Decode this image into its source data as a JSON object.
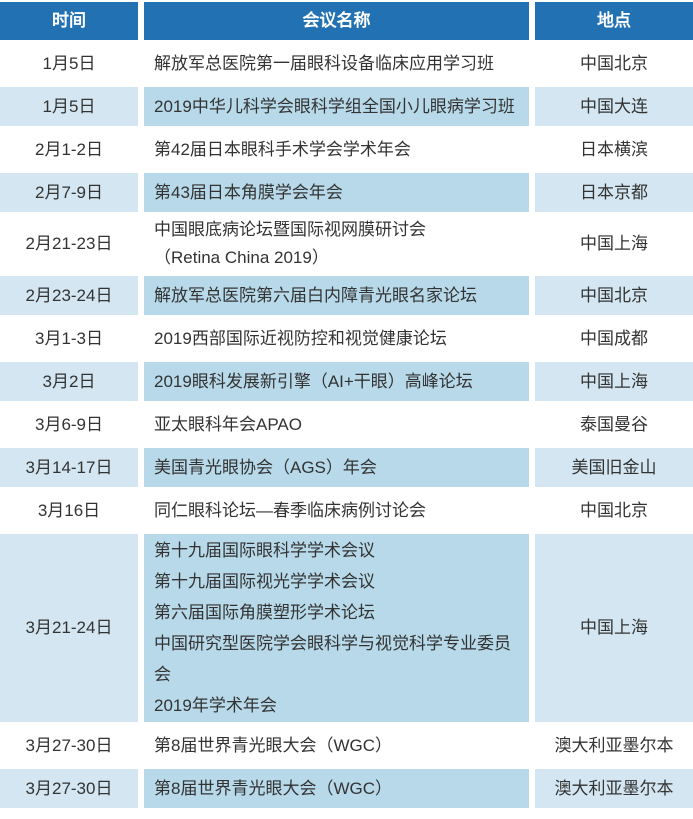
{
  "colors": {
    "header_bg": "#2272b3",
    "header_text": "#ffffff",
    "row_bg": "#ffffff",
    "row_alt_bg": "#d3e6f1",
    "row_alt_mid_bg": "#b7d9e9",
    "text": "#333333",
    "separator": "#ffffff"
  },
  "table": {
    "columns": [
      {
        "key": "date",
        "label": "时间"
      },
      {
        "key": "name",
        "label": "会议名称"
      },
      {
        "key": "location",
        "label": "地点"
      }
    ],
    "rows": [
      {
        "date": "1月5日",
        "name": "解放军总医院第一届眼科设备临床应用学习班",
        "location": "中国北京"
      },
      {
        "date": "1月5日",
        "name": "2019中华儿科学会眼科学组全国小儿眼病学习班",
        "location": "中国大连"
      },
      {
        "date": "2月1-2日",
        "name": "第42届日本眼科手术学会学术年会",
        "location": "日本横滨"
      },
      {
        "date": "2月7-9日",
        "name": "第43届日本角膜学会年会",
        "location": "日本京都"
      },
      {
        "date": "2月21-23日",
        "name": "中国眼底病论坛暨国际视网膜研讨会\n（Retina China 2019）",
        "location": "中国上海"
      },
      {
        "date": "2月23-24日",
        "name": "解放军总医院第六届白内障青光眼名家论坛",
        "location": "中国北京"
      },
      {
        "date": "3月1-3日",
        "name": "2019西部国际近视防控和视觉健康论坛",
        "location": "中国成都"
      },
      {
        "date": "3月2日",
        "name": "2019眼科发展新引擎（AI+干眼）高峰论坛",
        "location": "中国上海"
      },
      {
        "date": "3月6-9日",
        "name": "亚太眼科年会APAO",
        "location": "泰国曼谷"
      },
      {
        "date": "3月14-17日",
        "name": "美国青光眼协会（AGS）年会",
        "location": "美国旧金山"
      },
      {
        "date": "3月16日",
        "name": "同仁眼科论坛—春季临床病例讨论会",
        "location": "中国北京"
      },
      {
        "date": "3月21-24日",
        "name": "第十九届国际眼科学学术会议\n第十九届国际视光学学术会议\n第六届国际角膜塑形学术论坛\n中国研究型医院学会眼科学与视觉科学专业委员会\n2019年学术年会",
        "location": "中国上海"
      },
      {
        "date": "3月27-30日",
        "name": "第8届世界青光眼大会（WGC）",
        "location": "澳大利亚墨尔本"
      },
      {
        "date": "3月27-30日",
        "name": "第8届世界青光眼大会（WGC）",
        "location": "澳大利亚墨尔本"
      }
    ]
  }
}
